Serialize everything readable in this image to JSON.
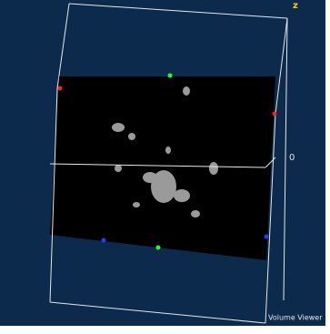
{
  "viewer": {
    "axis_label": "z",
    "tick_label": "0",
    "caption": "Volume Viewer"
  }
}
